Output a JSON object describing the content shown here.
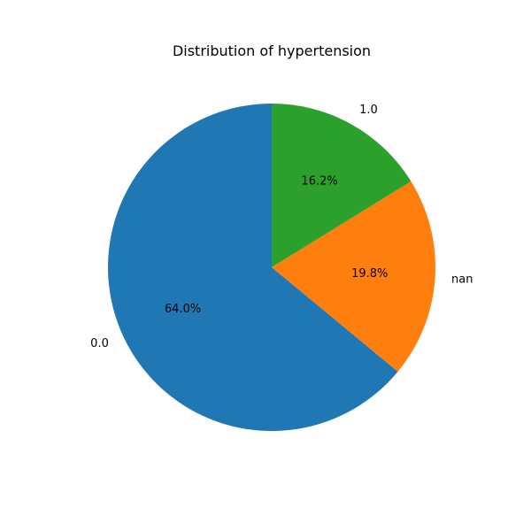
{
  "chart_data": {
    "type": "pie",
    "title": "Distribution of hypertension",
    "slices": [
      {
        "label": "0.0",
        "value": 64.0,
        "pct_label": "64.0%",
        "color": "#1f77b4"
      },
      {
        "label": "nan",
        "value": 19.8,
        "pct_label": "19.8%",
        "color": "#ff7f0e"
      },
      {
        "label": "1.0",
        "value": 16.2,
        "pct_label": "16.2%",
        "color": "#2ca02c"
      }
    ],
    "start_angle_deg": 90,
    "direction": "counterclockwise",
    "legend": "none"
  }
}
